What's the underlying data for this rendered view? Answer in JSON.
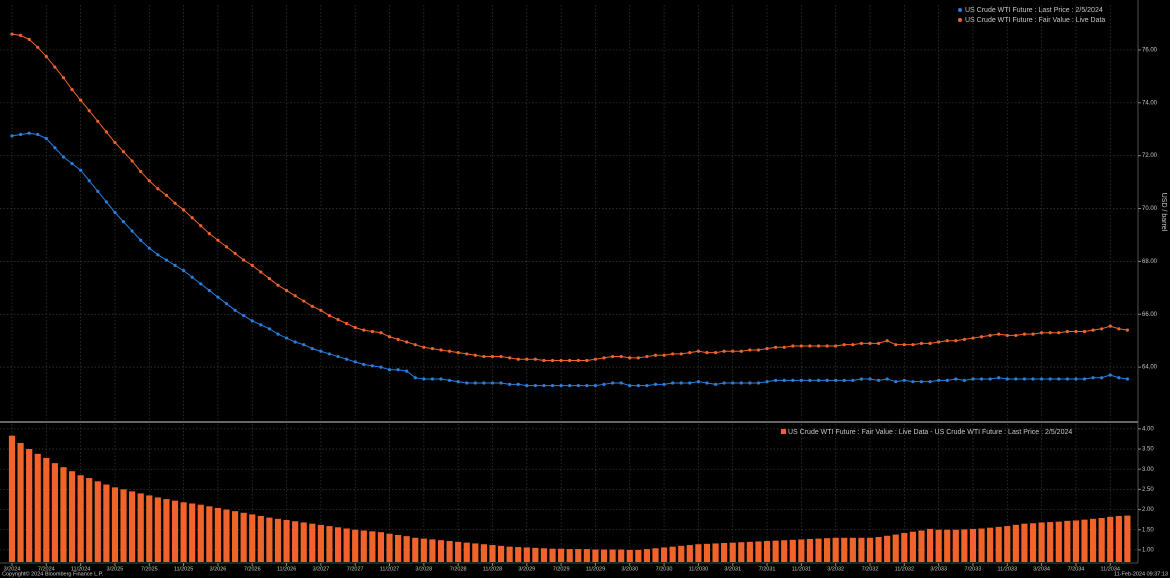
{
  "chart_data": [
    {
      "type": "line",
      "y_label": "USD / barrel",
      "ylim": [
        62,
        77.7
      ],
      "yticks": [
        {
          "value": 64,
          "label": "64.00"
        },
        {
          "value": 66,
          "label": "66.00"
        },
        {
          "value": 68,
          "label": "68.00"
        },
        {
          "value": 70,
          "label": "70.00"
        },
        {
          "value": 72,
          "label": "72.00"
        },
        {
          "value": 74,
          "label": "74.00"
        },
        {
          "value": 76,
          "label": "76.00"
        }
      ],
      "grid": true,
      "legend": "upper right",
      "series": [
        {
          "name": "US Crude WTI Future : Last Price : 2/5/2024",
          "color": "#2a7fdc",
          "values": [
            72.75,
            72.8,
            72.85,
            72.8,
            72.65,
            72.3,
            71.95,
            71.7,
            71.45,
            71.05,
            70.65,
            70.25,
            69.85,
            69.5,
            69.15,
            68.8,
            68.5,
            68.25,
            68.05,
            67.85,
            67.65,
            67.4,
            67.15,
            66.9,
            66.65,
            66.4,
            66.15,
            65.95,
            65.75,
            65.6,
            65.45,
            65.25,
            65.1,
            64.95,
            64.85,
            64.7,
            64.6,
            64.5,
            64.4,
            64.3,
            64.2,
            64.1,
            64.05,
            64.0,
            63.9,
            63.9,
            63.85,
            63.6,
            63.55,
            63.55,
            63.55,
            63.5,
            63.45,
            63.4,
            63.4,
            63.4,
            63.4,
            63.4,
            63.35,
            63.35,
            63.3,
            63.3,
            63.3,
            63.3,
            63.3,
            63.3,
            63.3,
            63.3,
            63.3,
            63.35,
            63.4,
            63.4,
            63.3,
            63.3,
            63.3,
            63.35,
            63.35,
            63.4,
            63.4,
            63.4,
            63.45,
            63.4,
            63.35,
            63.4,
            63.4,
            63.4,
            63.4,
            63.4,
            63.45,
            63.5,
            63.5,
            63.5,
            63.5,
            63.5,
            63.5,
            63.5,
            63.5,
            63.5,
            63.5,
            63.55,
            63.55,
            63.5,
            63.55,
            63.45,
            63.5,
            63.45,
            63.45,
            63.45,
            63.5,
            63.5,
            63.55,
            63.5,
            63.55,
            63.55,
            63.55,
            63.6,
            63.55,
            63.55,
            63.55,
            63.55,
            63.55,
            63.55,
            63.55,
            63.55,
            63.55,
            63.55,
            63.6,
            63.6,
            63.7,
            63.6,
            63.55
          ]
        },
        {
          "name": "US Crude WTI Future : Fair Value : Live Data",
          "color": "#f0642c",
          "values": [
            76.6,
            76.55,
            76.4,
            76.1,
            75.75,
            75.35,
            74.95,
            74.5,
            74.1,
            73.7,
            73.3,
            72.9,
            72.5,
            72.15,
            71.8,
            71.4,
            71.05,
            70.75,
            70.5,
            70.2,
            69.95,
            69.65,
            69.35,
            69.05,
            68.8,
            68.55,
            68.3,
            68.05,
            67.85,
            67.6,
            67.35,
            67.1,
            66.9,
            66.7,
            66.5,
            66.3,
            66.15,
            65.95,
            65.8,
            65.65,
            65.5,
            65.4,
            65.35,
            65.3,
            65.15,
            65.05,
            64.95,
            64.85,
            64.75,
            64.7,
            64.65,
            64.6,
            64.55,
            64.5,
            64.45,
            64.4,
            64.4,
            64.4,
            64.35,
            64.3,
            64.3,
            64.3,
            64.25,
            64.25,
            64.25,
            64.25,
            64.25,
            64.25,
            64.3,
            64.35,
            64.4,
            64.4,
            64.35,
            64.35,
            64.4,
            64.45,
            64.45,
            64.5,
            64.5,
            64.55,
            64.6,
            64.55,
            64.55,
            64.6,
            64.6,
            64.6,
            64.65,
            64.65,
            64.7,
            64.75,
            64.75,
            64.8,
            64.8,
            64.8,
            64.8,
            64.8,
            64.8,
            64.85,
            64.85,
            64.9,
            64.9,
            64.9,
            65.0,
            64.85,
            64.85,
            64.85,
            64.9,
            64.9,
            64.95,
            65.0,
            65.0,
            65.05,
            65.1,
            65.15,
            65.2,
            65.25,
            65.2,
            65.2,
            65.25,
            65.25,
            65.3,
            65.3,
            65.3,
            65.35,
            65.35,
            65.35,
            65.4,
            65.45,
            65.55,
            65.45,
            65.4
          ]
        }
      ]
    },
    {
      "type": "bar",
      "ylim": [
        0.7,
        4.12
      ],
      "yticks": [
        {
          "value": 1,
          "label": "1.00"
        },
        {
          "value": 1.5,
          "label": "1.50"
        },
        {
          "value": 2,
          "label": "2.00"
        },
        {
          "value": 2.5,
          "label": "2.50"
        },
        {
          "value": 3,
          "label": "3.00"
        },
        {
          "value": 3.5,
          "label": "3.50"
        },
        {
          "value": 4,
          "label": "4.00"
        }
      ],
      "grid": true,
      "legend": "upper right",
      "categories": [
        "3/2024",
        null,
        null,
        null,
        "7/2024",
        null,
        null,
        null,
        "11/2024",
        null,
        null,
        null,
        "3/2025",
        null,
        null,
        null,
        "7/2025",
        null,
        null,
        null,
        "11/2025",
        null,
        null,
        null,
        "3/2026",
        null,
        null,
        null,
        "7/2026",
        null,
        null,
        null,
        "11/2026",
        null,
        null,
        null,
        "3/2027",
        null,
        null,
        null,
        "7/2027",
        null,
        null,
        null,
        "11/2027",
        null,
        null,
        null,
        "3/2028",
        null,
        null,
        null,
        "7/2028",
        null,
        null,
        null,
        "11/2028",
        null,
        null,
        null,
        "3/2029",
        null,
        null,
        null,
        "7/2029",
        null,
        null,
        null,
        "11/2029",
        null,
        null,
        null,
        "3/2030",
        null,
        null,
        null,
        "7/2030",
        null,
        null,
        null,
        "11/2030",
        null,
        null,
        null,
        "3/2031",
        null,
        null,
        null,
        "7/2031",
        null,
        null,
        null,
        "11/2031",
        null,
        null,
        null,
        "3/2032",
        null,
        null,
        null,
        "7/2032",
        null,
        null,
        null,
        "11/2032",
        null,
        null,
        null,
        "3/2033",
        null,
        null,
        null,
        "7/2033",
        null,
        null,
        null,
        "11/2033",
        null,
        null,
        null,
        "3/2034",
        null,
        null,
        null,
        "7/2034",
        null,
        null,
        null,
        "11/2034",
        null,
        null
      ],
      "series": [
        {
          "name": "US Crude WTI Future : Fair Value : Live Data - US Crude WTI Future : Last Price : 2/5/2024",
          "color": "#f0642c",
          "values": [
            3.83,
            3.65,
            3.5,
            3.38,
            3.28,
            3.15,
            3.05,
            2.95,
            2.85,
            2.78,
            2.7,
            2.62,
            2.55,
            2.5,
            2.45,
            2.4,
            2.35,
            2.3,
            2.26,
            2.22,
            2.18,
            2.15,
            2.12,
            2.08,
            2.04,
            2.0,
            1.96,
            1.92,
            1.88,
            1.84,
            1.8,
            1.77,
            1.74,
            1.71,
            1.68,
            1.65,
            1.62,
            1.59,
            1.56,
            1.53,
            1.5,
            1.48,
            1.46,
            1.44,
            1.4,
            1.37,
            1.34,
            1.3,
            1.28,
            1.26,
            1.24,
            1.22,
            1.2,
            1.18,
            1.16,
            1.14,
            1.12,
            1.1,
            1.08,
            1.07,
            1.06,
            1.05,
            1.04,
            1.03,
            1.03,
            1.02,
            1.02,
            1.02,
            1.01,
            1.01,
            1.01,
            1.01,
            1.0,
            1.0,
            1.02,
            1.04,
            1.06,
            1.08,
            1.1,
            1.12,
            1.14,
            1.15,
            1.16,
            1.17,
            1.18,
            1.19,
            1.2,
            1.21,
            1.22,
            1.23,
            1.24,
            1.25,
            1.26,
            1.27,
            1.28,
            1.29,
            1.3,
            1.3,
            1.3,
            1.3,
            1.3,
            1.32,
            1.35,
            1.38,
            1.42,
            1.45,
            1.48,
            1.52,
            1.5,
            1.5,
            1.5,
            1.51,
            1.52,
            1.53,
            1.55,
            1.57,
            1.59,
            1.62,
            1.65,
            1.66,
            1.68,
            1.69,
            1.7,
            1.72,
            1.73,
            1.75,
            1.77,
            1.79,
            1.82,
            1.84,
            1.85
          ]
        }
      ]
    }
  ],
  "footer": {
    "copyright": "Copyright© 2024 Bloomberg Finance L.P.",
    "timestamp": "11-Feb-2024 09:37:13"
  }
}
